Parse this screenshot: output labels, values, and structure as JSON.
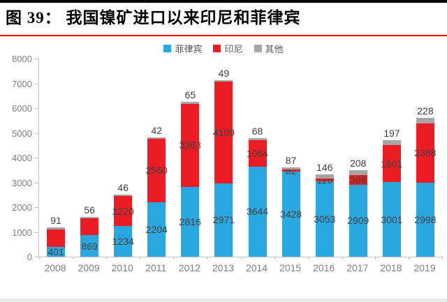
{
  "title": "图 39： 我国镍矿进口以来印尼和菲律宾",
  "chart_data": {
    "type": "bar",
    "stacked": true,
    "categories": [
      "2008",
      "2009",
      "2010",
      "2011",
      "2012",
      "2013",
      "2014",
      "2015",
      "2016",
      "2017",
      "2018",
      "2019"
    ],
    "series": [
      {
        "name": "菲律宾",
        "color": "#2ba7df",
        "values": [
          401,
          869,
          1234,
          2204,
          2816,
          2971,
          3644,
          3428,
          3053,
          2909,
          3001,
          2998
        ],
        "labels": [
          "401",
          "869",
          "1234",
          "2204",
          "2816",
          "2971",
          "3644",
          "3428",
          "3053",
          "2909",
          "3001",
          "2998"
        ]
      },
      {
        "name": "印尼",
        "color": "#ec1c24",
        "values": [
          700,
          690,
          1220,
          2560,
          3363,
          4109,
          1064,
          82,
          116,
          386,
          1501,
          2388
        ],
        "labels": [
          null,
          null,
          "1220",
          "2560",
          "3363",
          "4109",
          "1064",
          "82",
          "116",
          "386",
          "1501",
          "2388"
        ]
      },
      {
        "name": "其他",
        "color": "#a6a6a6",
        "values": [
          91,
          56,
          46,
          42,
          65,
          49,
          68,
          87,
          146,
          208,
          197,
          228
        ],
        "labels": [
          "91",
          "56",
          "46",
          "42",
          "65",
          "49",
          "68",
          "87",
          "146",
          "208",
          "197",
          "228"
        ]
      }
    ],
    "ylim": [
      0,
      8000
    ],
    "ytick_step": 1000,
    "grid": false,
    "legend_position": "top"
  }
}
